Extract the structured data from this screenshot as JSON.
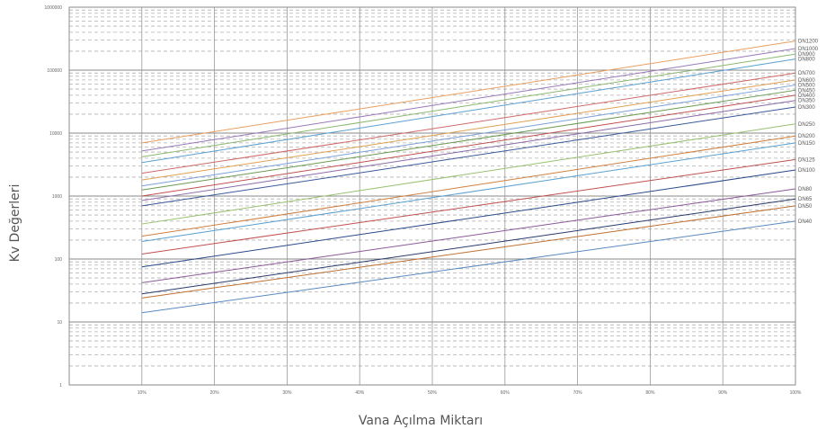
{
  "chart_data": {
    "type": "line",
    "title": "",
    "xlabel": "Vana Açılma Miktarı",
    "ylabel": "Kv Değerleri",
    "y_scale": "log",
    "ylim": [
      1,
      1000000
    ],
    "yticks": [
      {
        "value": 1000000,
        "label": "1000000"
      },
      {
        "value": 100000,
        "label": "100000"
      },
      {
        "value": 10000,
        "label": "10000"
      },
      {
        "value": 1000,
        "label": "1000"
      },
      {
        "value": 100,
        "label": "100"
      },
      {
        "value": 10,
        "label": "10"
      },
      {
        "value": 1,
        "label": "1"
      }
    ],
    "xlim": [
      0,
      100
    ],
    "xticks": [
      {
        "value": 10,
        "label": "10%"
      },
      {
        "value": 20,
        "label": "20%"
      },
      {
        "value": 30,
        "label": "30%"
      },
      {
        "value": 40,
        "label": "40%"
      },
      {
        "value": 50,
        "label": "50%"
      },
      {
        "value": 60,
        "label": "60%"
      },
      {
        "value": 70,
        "label": "70%"
      },
      {
        "value": 80,
        "label": "80%"
      },
      {
        "value": 90,
        "label": "90%"
      },
      {
        "value": 100,
        "label": "100%"
      }
    ],
    "grid": true,
    "legend": "labels at right end of lines",
    "series": [
      {
        "name": "DN1200",
        "color": "#e8a060",
        "start": [
          10,
          7000
        ],
        "end": [
          100,
          290000
        ]
      },
      {
        "name": "DN1000",
        "color": "#9a7ab8",
        "start": [
          10,
          5200
        ],
        "end": [
          100,
          220000
        ]
      },
      {
        "name": "DN900",
        "color": "#8cb870",
        "start": [
          10,
          4200
        ],
        "end": [
          100,
          180000
        ]
      },
      {
        "name": "DN800",
        "color": "#5aa0d0",
        "start": [
          10,
          3400
        ],
        "end": [
          100,
          150000
        ]
      },
      {
        "name": "DN700",
        "color": "#d06a6a",
        "start": [
          10,
          2300
        ],
        "end": [
          100,
          90000
        ]
      },
      {
        "name": "DN600",
        "color": "#e0a050",
        "start": [
          10,
          1800
        ],
        "end": [
          100,
          70000
        ]
      },
      {
        "name": "DN500",
        "color": "#7aa0d8",
        "start": [
          10,
          1450
        ],
        "end": [
          100,
          58000
        ]
      },
      {
        "name": "DN450",
        "color": "#6a9a50",
        "start": [
          10,
          1250
        ],
        "end": [
          100,
          48000
        ]
      },
      {
        "name": "DN400",
        "color": "#c05050",
        "start": [
          10,
          1000
        ],
        "end": [
          100,
          40000
        ]
      },
      {
        "name": "DN350",
        "color": "#8a6aa8",
        "start": [
          10,
          850
        ],
        "end": [
          100,
          33000
        ]
      },
      {
        "name": "DN300",
        "color": "#3a5a9a",
        "start": [
          10,
          700
        ],
        "end": [
          100,
          26000
        ]
      },
      {
        "name": "DN250",
        "color": "#9ac070",
        "start": [
          10,
          360
        ],
        "end": [
          100,
          14000
        ]
      },
      {
        "name": "DN200",
        "color": "#d08040",
        "start": [
          10,
          230
        ],
        "end": [
          100,
          9000
        ]
      },
      {
        "name": "DN150",
        "color": "#5aa0d0",
        "start": [
          10,
          190
        ],
        "end": [
          100,
          7000
        ]
      },
      {
        "name": "DN125",
        "color": "#c05050",
        "start": [
          10,
          120
        ],
        "end": [
          100,
          3800
        ]
      },
      {
        "name": "DN100",
        "color": "#2a4a8a",
        "start": [
          10,
          75
        ],
        "end": [
          100,
          2600
        ]
      },
      {
        "name": "DN80",
        "color": "#8a5a9a",
        "start": [
          10,
          42
        ],
        "end": [
          100,
          1300
        ]
      },
      {
        "name": "DN65",
        "color": "#2a3a6a",
        "start": [
          10,
          28
        ],
        "end": [
          100,
          900
        ]
      },
      {
        "name": "DN50",
        "color": "#c07030",
        "start": [
          10,
          24
        ],
        "end": [
          100,
          700
        ]
      },
      {
        "name": "DN40",
        "color": "#5a8ac0",
        "start": [
          10,
          14
        ],
        "end": [
          100,
          400
        ]
      }
    ]
  }
}
